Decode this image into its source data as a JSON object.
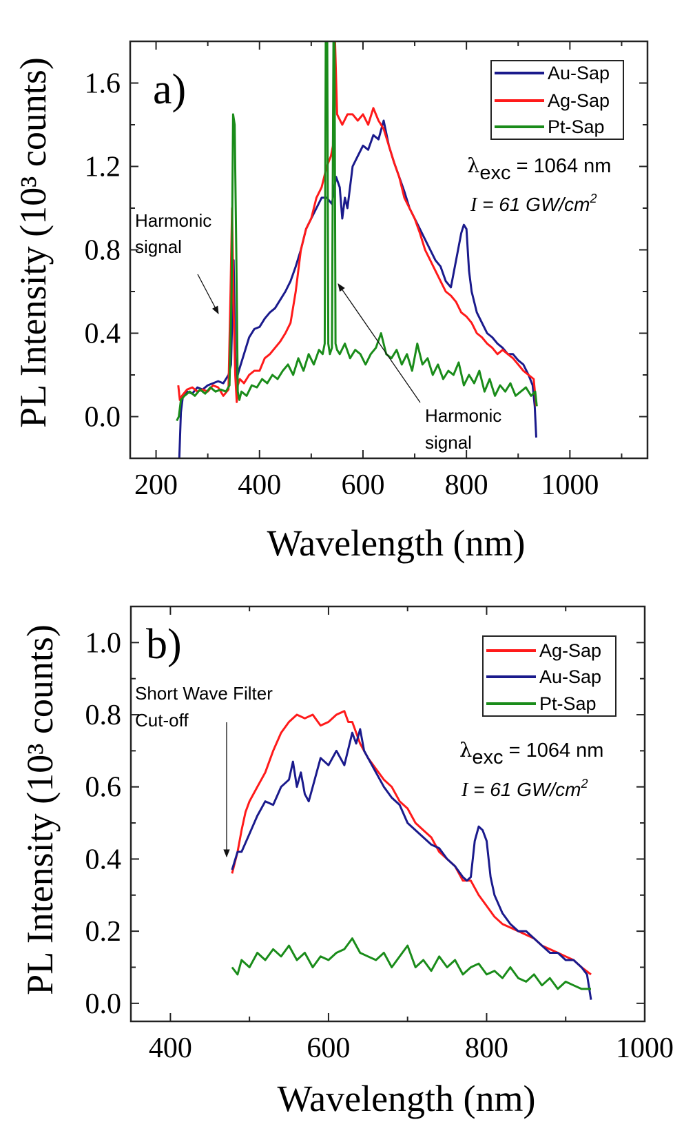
{
  "chart_data": [
    {
      "type": "line",
      "panel_label": "a)",
      "xlabel": "Wavelength (nm)",
      "ylabel": "PL Intensity (10³ counts)",
      "xlim": [
        150,
        1150
      ],
      "ylim": [
        -0.2,
        1.8
      ],
      "xticks": [
        200,
        400,
        600,
        800,
        1000
      ],
      "yticks": [
        0.0,
        0.4,
        0.8,
        1.2,
        1.6
      ],
      "ytick_labels": [
        "0.0",
        "0.4",
        "0.8",
        "1.2",
        "1.6"
      ],
      "grid": false,
      "legend_position": "top-right",
      "annotations": {
        "excitation": "λexc = 1064 nm",
        "excitation_symbol": "λ",
        "excitation_sub": "exc",
        "excitation_value": " = 1064 nm",
        "intensity_prefix": "I",
        "intensity_value": " = 61 GW/cm",
        "intensity_sup": "2",
        "harmonic_left": [
          "Harmonic",
          "signal"
        ],
        "harmonic_right": [
          "Harmonic",
          "signal"
        ]
      },
      "series": [
        {
          "name": "Au-Sap",
          "color": "#1a1a8c",
          "x": [
            245,
            248,
            252,
            260,
            270,
            280,
            290,
            300,
            310,
            320,
            330,
            340,
            345,
            350,
            353,
            356,
            360,
            370,
            380,
            390,
            400,
            410,
            420,
            430,
            440,
            450,
            460,
            470,
            480,
            490,
            500,
            510,
            520,
            530,
            540,
            548,
            555,
            560,
            565,
            570,
            580,
            590,
            600,
            610,
            620,
            630,
            640,
            650,
            660,
            670,
            680,
            690,
            700,
            710,
            720,
            730,
            740,
            750,
            760,
            770,
            780,
            790,
            795,
            800,
            805,
            810,
            820,
            830,
            840,
            850,
            860,
            870,
            880,
            890,
            900,
            910,
            920,
            928,
            932,
            935
          ],
          "y": [
            -0.2,
            0.02,
            0.1,
            0.12,
            0.11,
            0.14,
            0.13,
            0.15,
            0.16,
            0.17,
            0.16,
            0.2,
            0.25,
            0.75,
            0.3,
            0.18,
            0.22,
            0.3,
            0.38,
            0.42,
            0.43,
            0.47,
            0.5,
            0.52,
            0.56,
            0.6,
            0.65,
            0.72,
            0.8,
            0.9,
            0.95,
            1.0,
            1.05,
            1.05,
            1.02,
            1.15,
            1.1,
            0.95,
            1.05,
            1.0,
            1.2,
            1.25,
            1.3,
            1.28,
            1.35,
            1.33,
            1.42,
            1.3,
            1.22,
            1.15,
            1.08,
            1.0,
            0.95,
            0.9,
            0.85,
            0.8,
            0.75,
            0.72,
            0.65,
            0.62,
            0.75,
            0.88,
            0.92,
            0.9,
            0.7,
            0.6,
            0.5,
            0.45,
            0.4,
            0.38,
            0.35,
            0.33,
            0.3,
            0.3,
            0.27,
            0.25,
            0.2,
            0.15,
            0.05,
            -0.1
          ]
        },
        {
          "name": "Ag-Sap",
          "color": "#ff1a1a",
          "x": [
            243,
            246,
            250,
            260,
            270,
            280,
            290,
            300,
            310,
            320,
            330,
            340,
            344,
            347,
            350,
            353,
            356,
            358,
            362,
            370,
            380,
            390,
            400,
            410,
            420,
            430,
            440,
            450,
            460,
            470,
            480,
            490,
            500,
            510,
            520,
            530,
            538,
            542,
            544,
            546,
            550,
            560,
            570,
            580,
            590,
            600,
            610,
            620,
            630,
            640,
            650,
            660,
            670,
            680,
            690,
            700,
            710,
            720,
            730,
            740,
            750,
            760,
            770,
            780,
            790,
            800,
            810,
            820,
            830,
            840,
            850,
            860,
            870,
            880,
            890,
            900,
            910,
            920,
            930,
            935
          ],
          "y": [
            0.15,
            0.08,
            0.1,
            0.13,
            0.14,
            0.12,
            0.13,
            0.12,
            0.15,
            0.14,
            0.1,
            0.13,
            0.6,
            1.0,
            0.5,
            0.2,
            0.07,
            0.15,
            0.18,
            0.16,
            0.2,
            0.22,
            0.22,
            0.28,
            0.3,
            0.33,
            0.36,
            0.4,
            0.45,
            0.6,
            0.8,
            0.9,
            0.95,
            1.05,
            1.1,
            1.2,
            1.25,
            1.3,
            1.8,
            1.8,
            1.45,
            1.4,
            1.45,
            1.45,
            1.42,
            1.45,
            1.4,
            1.48,
            1.42,
            1.38,
            1.3,
            1.22,
            1.15,
            1.05,
            1.0,
            0.95,
            0.88,
            0.8,
            0.75,
            0.7,
            0.65,
            0.6,
            0.58,
            0.55,
            0.5,
            0.48,
            0.45,
            0.4,
            0.38,
            0.35,
            0.33,
            0.3,
            0.32,
            0.3,
            0.28,
            0.25,
            0.22,
            0.2,
            0.18,
            0.05
          ]
        },
        {
          "name": "Pt-Sap",
          "color": "#1a8c1a",
          "x": [
            240,
            244,
            248,
            255,
            265,
            275,
            285,
            295,
            305,
            315,
            325,
            335,
            342,
            346,
            349,
            352,
            355,
            358,
            361,
            365,
            375,
            385,
            395,
            405,
            415,
            425,
            435,
            445,
            455,
            465,
            475,
            485,
            495,
            505,
            515,
            522,
            526,
            528,
            531,
            533,
            536,
            540,
            543,
            545,
            547,
            550,
            555,
            565,
            575,
            585,
            595,
            605,
            615,
            625,
            635,
            645,
            655,
            665,
            675,
            685,
            695,
            705,
            715,
            725,
            735,
            745,
            755,
            765,
            775,
            785,
            795,
            805,
            815,
            825,
            835,
            845,
            855,
            865,
            875,
            885,
            895,
            905,
            915,
            925,
            933,
            936
          ],
          "y": [
            -0.02,
            0.0,
            0.08,
            0.1,
            0.12,
            0.1,
            0.13,
            0.11,
            0.14,
            0.12,
            0.13,
            0.12,
            0.15,
            0.6,
            1.45,
            1.4,
            0.8,
            0.12,
            0.08,
            0.12,
            0.1,
            0.15,
            0.14,
            0.18,
            0.16,
            0.2,
            0.18,
            0.22,
            0.25,
            0.2,
            0.28,
            0.22,
            0.3,
            0.25,
            0.32,
            0.3,
            0.35,
            1.8,
            1.8,
            0.35,
            0.3,
            0.33,
            1.8,
            1.8,
            0.35,
            0.32,
            0.3,
            0.35,
            0.28,
            0.32,
            0.3,
            0.25,
            0.3,
            0.33,
            0.4,
            0.3,
            0.28,
            0.32,
            0.25,
            0.3,
            0.22,
            0.35,
            0.25,
            0.28,
            0.2,
            0.25,
            0.18,
            0.22,
            0.2,
            0.26,
            0.15,
            0.2,
            0.16,
            0.22,
            0.12,
            0.18,
            0.1,
            0.15,
            0.12,
            0.16,
            0.1,
            0.12,
            0.14,
            0.1,
            0.12,
            0.05
          ]
        }
      ]
    },
    {
      "type": "line",
      "panel_label": "b)",
      "xlabel": "Wavelength (nm)",
      "ylabel": "PL Intensity (10³ counts)",
      "xlim": [
        350,
        1000
      ],
      "ylim": [
        -0.05,
        1.1
      ],
      "xticks": [
        400,
        600,
        800,
        1000
      ],
      "yticks": [
        0.0,
        0.2,
        0.4,
        0.6,
        0.8,
        1.0
      ],
      "ytick_labels": [
        "0.0",
        "0.2",
        "0.4",
        "0.6",
        "0.8",
        "1.0"
      ],
      "grid": false,
      "legend_position": "top-right",
      "annotations": {
        "excitation_symbol": "λ",
        "excitation_sub": "exc",
        "excitation_value": " = 1064 nm",
        "intensity_prefix": "I",
        "intensity_value": " = 61 GW/cm",
        "intensity_sup": "2",
        "filter": [
          "Short Wave Filter",
          "Cut-off"
        ]
      },
      "series": [
        {
          "name": "Ag-Sap",
          "color": "#ff1a1a",
          "x": [
            478,
            485,
            490,
            495,
            500,
            510,
            520,
            530,
            540,
            550,
            560,
            570,
            580,
            590,
            600,
            610,
            620,
            625,
            630,
            640,
            650,
            660,
            670,
            680,
            690,
            700,
            710,
            720,
            730,
            740,
            750,
            760,
            770,
            780,
            790,
            800,
            810,
            820,
            830,
            840,
            850,
            860,
            870,
            880,
            890,
            900,
            910,
            920,
            932
          ],
          "y": [
            0.36,
            0.42,
            0.48,
            0.53,
            0.56,
            0.6,
            0.64,
            0.7,
            0.75,
            0.78,
            0.8,
            0.79,
            0.8,
            0.77,
            0.78,
            0.8,
            0.81,
            0.78,
            0.78,
            0.72,
            0.68,
            0.65,
            0.62,
            0.6,
            0.56,
            0.54,
            0.5,
            0.48,
            0.46,
            0.42,
            0.4,
            0.38,
            0.34,
            0.34,
            0.3,
            0.27,
            0.24,
            0.22,
            0.21,
            0.2,
            0.19,
            0.18,
            0.16,
            0.15,
            0.14,
            0.13,
            0.12,
            0.1,
            0.08
          ]
        },
        {
          "name": "Au-Sap",
          "color": "#1a1a8c",
          "x": [
            478,
            485,
            490,
            500,
            510,
            520,
            530,
            540,
            550,
            555,
            560,
            565,
            570,
            575,
            580,
            590,
            600,
            610,
            620,
            630,
            635,
            640,
            645,
            650,
            660,
            670,
            680,
            690,
            700,
            710,
            720,
            730,
            740,
            750,
            760,
            770,
            775,
            780,
            785,
            790,
            795,
            800,
            805,
            810,
            820,
            830,
            840,
            850,
            860,
            870,
            880,
            890,
            900,
            910,
            920,
            927,
            932
          ],
          "y": [
            0.37,
            0.42,
            0.42,
            0.47,
            0.52,
            0.56,
            0.55,
            0.6,
            0.62,
            0.67,
            0.6,
            0.64,
            0.58,
            0.56,
            0.6,
            0.68,
            0.66,
            0.7,
            0.66,
            0.75,
            0.72,
            0.76,
            0.7,
            0.68,
            0.64,
            0.6,
            0.57,
            0.55,
            0.5,
            0.48,
            0.46,
            0.44,
            0.43,
            0.4,
            0.38,
            0.35,
            0.34,
            0.35,
            0.45,
            0.49,
            0.48,
            0.45,
            0.35,
            0.3,
            0.25,
            0.22,
            0.2,
            0.2,
            0.18,
            0.16,
            0.14,
            0.14,
            0.12,
            0.12,
            0.1,
            0.08,
            0.01
          ]
        },
        {
          "name": "Pt-Sap",
          "color": "#1a8c1a",
          "x": [
            478,
            485,
            490,
            500,
            510,
            520,
            530,
            540,
            550,
            560,
            570,
            580,
            590,
            600,
            610,
            620,
            630,
            640,
            650,
            660,
            670,
            680,
            690,
            700,
            710,
            720,
            730,
            740,
            750,
            760,
            770,
            780,
            790,
            800,
            810,
            820,
            830,
            840,
            850,
            860,
            870,
            880,
            890,
            900,
            910,
            920,
            932
          ],
          "y": [
            0.1,
            0.08,
            0.12,
            0.1,
            0.14,
            0.12,
            0.15,
            0.13,
            0.16,
            0.12,
            0.14,
            0.1,
            0.13,
            0.12,
            0.14,
            0.15,
            0.18,
            0.14,
            0.13,
            0.12,
            0.14,
            0.1,
            0.13,
            0.16,
            0.1,
            0.12,
            0.09,
            0.13,
            0.1,
            0.12,
            0.08,
            0.1,
            0.11,
            0.08,
            0.09,
            0.07,
            0.1,
            0.07,
            0.06,
            0.08,
            0.05,
            0.07,
            0.04,
            0.06,
            0.05,
            0.04,
            0.04
          ]
        }
      ]
    }
  ]
}
